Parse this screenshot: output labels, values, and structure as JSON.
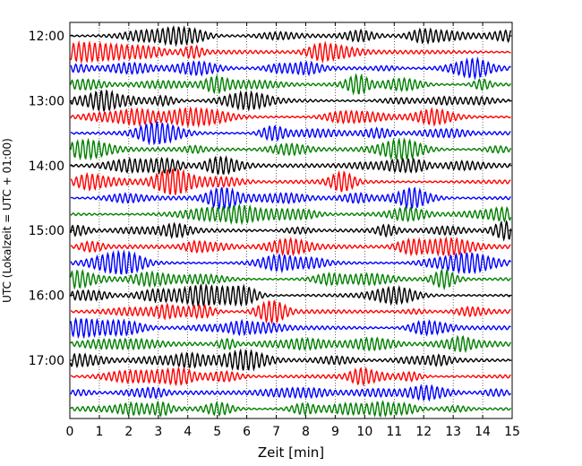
{
  "chart_data": {
    "type": "line",
    "title": "",
    "xlabel": "Zeit  [min]",
    "ylabel": "UTC (Lokalzeit = UTC + 01:00)",
    "xlim": [
      0,
      15
    ],
    "x_ticks": [
      "0",
      "1",
      "2",
      "3",
      "4",
      "5",
      "6",
      "7",
      "8",
      "9",
      "10",
      "11",
      "12",
      "13",
      "14",
      "15"
    ],
    "y_ticks": [
      {
        "label": "12:00",
        "trace": 0
      },
      {
        "label": "13:00",
        "trace": 4
      },
      {
        "label": "14:00",
        "trace": 8
      },
      {
        "label": "15:00",
        "trace": 12
      },
      {
        "label": "16:00",
        "trace": 16
      },
      {
        "label": "17:00",
        "trace": 20
      }
    ],
    "grid": "vertical dotted",
    "trace_count": 24,
    "trace_interval_min": 15,
    "colors": [
      "#000000",
      "#ff0000",
      "#0000ff",
      "#008000"
    ]
  }
}
